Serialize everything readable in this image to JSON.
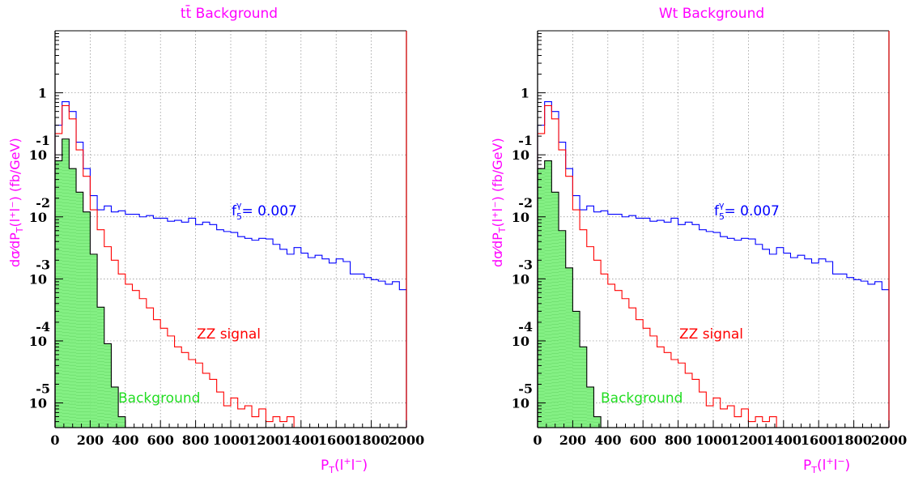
{
  "chart_data": [
    {
      "type": "line",
      "title": "tt̄  Background",
      "xlabel_main": "P",
      "xlabel_sub": "T",
      "xlabel_rest": "(l",
      "xlabel_plus": "+",
      "xlabel_l": "l",
      "xlabel_minus": "−",
      "xlabel_close": ")",
      "ylabel": "dσ⁄dP",
      "ylabel_sub": "T",
      "ylabel_rest": "(l⁺l⁻)  (fb/GeV)",
      "xlim": [
        0,
        2000
      ],
      "ylog": true,
      "ylim": [
        4e-06,
        10
      ],
      "grid": true,
      "xticks": [
        0,
        200,
        400,
        600,
        800,
        1000,
        1200,
        1400,
        1600,
        1800,
        2000
      ],
      "yticks": [
        {
          "base": "1",
          "exp": ""
        },
        {
          "base": "10",
          "exp": "-1"
        },
        {
          "base": "10",
          "exp": "-2"
        },
        {
          "base": "10",
          "exp": "-3"
        },
        {
          "base": "10",
          "exp": "-4"
        },
        {
          "base": "10",
          "exp": "-5"
        }
      ],
      "annotations": {
        "coupling_main": "f",
        "coupling_sub": "5",
        "coupling_sup": "γ",
        "coupling_val": "= 0.007",
        "signal": "ZZ signal",
        "background": "Background"
      },
      "bin_width": 40,
      "series": [
        {
          "color": "#0000ff",
          "values": [
            0.3,
            0.72,
            0.5,
            0.16,
            0.06,
            0.022,
            0.013,
            0.015,
            0.012,
            0.0125,
            0.011,
            0.011,
            0.01,
            0.0105,
            0.0095,
            0.0095,
            0.0085,
            0.0088,
            0.0082,
            0.0095,
            0.0075,
            0.0082,
            0.0075,
            0.0062,
            0.0058,
            0.0056,
            0.0048,
            0.0045,
            0.0042,
            0.0045,
            0.0044,
            0.0036,
            0.003,
            0.0025,
            0.0032,
            0.0026,
            0.0022,
            0.0024,
            0.0021,
            0.0018,
            0.0021,
            0.0019,
            0.0012,
            0.0012,
            0.00105,
            0.00097,
            0.00092,
            0.00082,
            0.0009,
            0.00067,
            0.00057
          ]
        },
        {
          "color": "#ff0000",
          "values": [
            0.22,
            0.62,
            0.38,
            0.12,
            0.045,
            0.013,
            0.0062,
            0.0033,
            0.002,
            0.0012,
            0.00082,
            0.00065,
            0.00048,
            0.00034,
            0.00022,
            0.00016,
            0.00012,
            8e-05,
            6.5e-05,
            5e-05,
            4.4e-05,
            3e-05,
            2.4e-05,
            1.5e-05,
            9e-06,
            1.2e-05,
            8e-06,
            9e-06,
            6e-06,
            8e-06,
            5e-06,
            6e-06,
            5e-06,
            6e-06
          ]
        },
        {
          "color": "#000000",
          "fill": "#77ee77",
          "values": [
            0.08,
            0.18,
            0.06,
            0.025,
            0.012,
            0.0025,
            0.00035,
            9e-05,
            1.8e-05,
            6e-06
          ]
        }
      ]
    },
    {
      "type": "line",
      "title": "Wt  Background",
      "xlabel_main": "P",
      "xlabel_sub": "T",
      "xlabel_rest": "(l",
      "xlabel_plus": "+",
      "xlabel_l": "l",
      "xlabel_minus": "−",
      "xlabel_close": ")",
      "ylabel": "dσ⁄dP",
      "ylabel_sub": "T",
      "ylabel_rest": "(l⁺l⁻)  (fb/GeV)",
      "xlim": [
        0,
        2000
      ],
      "ylog": true,
      "ylim": [
        4e-06,
        10
      ],
      "grid": true,
      "xticks": [
        0,
        200,
        400,
        600,
        800,
        1000,
        1200,
        1400,
        1600,
        1800,
        2000
      ],
      "yticks": [
        {
          "base": "1",
          "exp": ""
        },
        {
          "base": "10",
          "exp": "-1"
        },
        {
          "base": "10",
          "exp": "-2"
        },
        {
          "base": "10",
          "exp": "-3"
        },
        {
          "base": "10",
          "exp": "-4"
        },
        {
          "base": "10",
          "exp": "-5"
        }
      ],
      "annotations": {
        "coupling_main": "f",
        "coupling_sub": "5",
        "coupling_sup": "γ",
        "coupling_val": "= 0.007",
        "signal": "ZZ signal",
        "background": "Background"
      },
      "bin_width": 40,
      "series": [
        {
          "color": "#0000ff",
          "values": [
            0.3,
            0.72,
            0.5,
            0.16,
            0.06,
            0.022,
            0.013,
            0.015,
            0.012,
            0.0125,
            0.011,
            0.011,
            0.01,
            0.0105,
            0.0095,
            0.0095,
            0.0085,
            0.0088,
            0.0082,
            0.0095,
            0.0075,
            0.0082,
            0.0075,
            0.0062,
            0.0058,
            0.0056,
            0.0048,
            0.0045,
            0.0042,
            0.0045,
            0.0044,
            0.0036,
            0.003,
            0.0025,
            0.0032,
            0.0026,
            0.0022,
            0.0024,
            0.0021,
            0.0018,
            0.0021,
            0.0019,
            0.0012,
            0.0012,
            0.00105,
            0.00097,
            0.00092,
            0.00082,
            0.0009,
            0.00067,
            0.00057
          ]
        },
        {
          "color": "#ff0000",
          "values": [
            0.22,
            0.62,
            0.38,
            0.12,
            0.045,
            0.013,
            0.0062,
            0.0033,
            0.002,
            0.0012,
            0.00082,
            0.00065,
            0.00048,
            0.00034,
            0.00022,
            0.00016,
            0.00012,
            8e-05,
            6.5e-05,
            5e-05,
            4.4e-05,
            3e-05,
            2.4e-05,
            1.5e-05,
            9e-06,
            1.2e-05,
            8e-06,
            9e-06,
            6e-06,
            8e-06,
            5e-06,
            6e-06,
            5e-06,
            6e-06
          ]
        },
        {
          "color": "#000000",
          "fill": "#77ee77",
          "values": [
            0.06,
            0.08,
            0.025,
            0.006,
            0.0015,
            0.0003,
            8e-05,
            1.8e-05,
            6e-06
          ]
        }
      ]
    }
  ],
  "colors": {
    "title": "#ff00ff",
    "axis_labels": "#ff00ff",
    "grid": "#888888",
    "frame": "#000000",
    "right_edge": "#cc0000"
  }
}
